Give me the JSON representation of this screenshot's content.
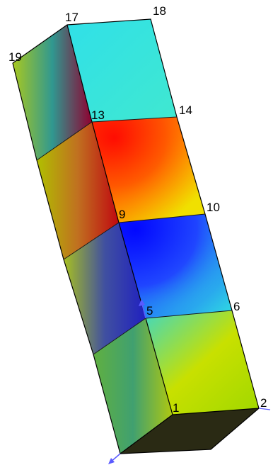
{
  "node_labels": {
    "n1": "1",
    "n2": "2",
    "n5": "5",
    "n6": "6",
    "n9": "9",
    "n10": "10",
    "n13": "13",
    "n14": "14",
    "n17": "17",
    "n18": "18",
    "n19": "19"
  },
  "colors": {
    "red": "#ff1010",
    "orange": "#ff9a00",
    "yellow": "#f4e800",
    "yellow_green": "#b8e000",
    "green": "#6ad040",
    "cyan": "#20e8e0",
    "blue": "#1010ff",
    "dark_blue": "#1820a0",
    "dark_base": "#2a2a10",
    "axis": "#5a5aff"
  },
  "icons": {
    "axis_triad_top": "axis-arrow-icon",
    "axis_triad_bottom": "axis-arrow-icon"
  }
}
